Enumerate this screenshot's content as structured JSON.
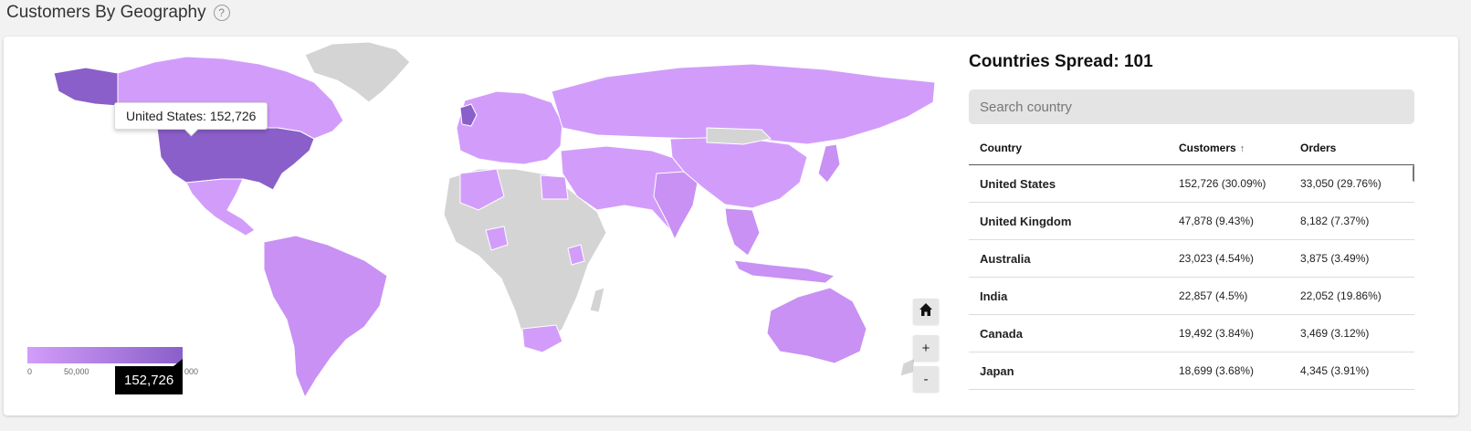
{
  "header": {
    "title": "Customers By Geography",
    "help_icon": "?"
  },
  "map": {
    "tooltip": "United States: 152,726",
    "legend": {
      "ticks": [
        "0",
        "50,000",
        "1",
        "000"
      ],
      "marker_value": "152,726",
      "colors": {
        "low": "#d39dfa",
        "high": "#8a5fc9",
        "no_data": "#d4d4d4"
      }
    },
    "controls": {
      "home": "⌂",
      "zoom_in": "+",
      "zoom_out": "-"
    }
  },
  "panel": {
    "title": "Countries Spread: 101",
    "search": {
      "placeholder": "Search country",
      "value": ""
    },
    "columns": {
      "country": "Country",
      "customers": "Customers",
      "orders": "Orders",
      "sort_icon": "↑"
    },
    "rows": [
      {
        "country": "United States",
        "customers": "152,726 (30.09%)",
        "orders": "33,050 (29.76%)"
      },
      {
        "country": "United Kingdom",
        "customers": "47,878 (9.43%)",
        "orders": "8,182 (7.37%)"
      },
      {
        "country": "Australia",
        "customers": "23,023 (4.54%)",
        "orders": "3,875 (3.49%)"
      },
      {
        "country": "India",
        "customers": "22,857 (4.5%)",
        "orders": "22,052 (19.86%)"
      },
      {
        "country": "Canada",
        "customers": "19,492 (3.84%)",
        "orders": "3,469 (3.12%)"
      },
      {
        "country": "Japan",
        "customers": "18,699 (3.68%)",
        "orders": "4,345 (3.91%)"
      }
    ]
  }
}
